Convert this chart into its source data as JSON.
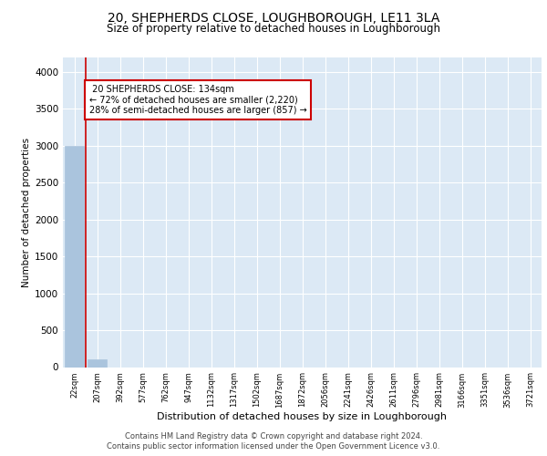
{
  "title_line1": "20, SHEPHERDS CLOSE, LOUGHBOROUGH, LE11 3LA",
  "title_line2": "Size of property relative to detached houses in Loughborough",
  "xlabel": "Distribution of detached houses by size in Loughborough",
  "ylabel": "Number of detached properties",
  "footer_line1": "Contains HM Land Registry data © Crown copyright and database right 2024.",
  "footer_line2": "Contains public sector information licensed under the Open Government Licence v3.0.",
  "bar_labels": [
    "22sqm",
    "207sqm",
    "392sqm",
    "577sqm",
    "762sqm",
    "947sqm",
    "1132sqm",
    "1317sqm",
    "1502sqm",
    "1687sqm",
    "1872sqm",
    "2056sqm",
    "2241sqm",
    "2426sqm",
    "2611sqm",
    "2796sqm",
    "2981sqm",
    "3166sqm",
    "3351sqm",
    "3536sqm",
    "3721sqm"
  ],
  "bar_values": [
    3000,
    110,
    0,
    0,
    0,
    0,
    0,
    0,
    0,
    0,
    0,
    0,
    0,
    0,
    0,
    0,
    0,
    0,
    0,
    0,
    0
  ],
  "bar_color": "#aac4dd",
  "pct_smaller": 72,
  "count_smaller": 2220,
  "pct_larger": 28,
  "count_larger": 857,
  "property_label": "20 SHEPHERDS CLOSE: 134sqm",
  "annotation_box_color": "#cc0000",
  "vline_color": "#cc0000",
  "ylim": [
    0,
    4200
  ],
  "yticks": [
    0,
    500,
    1000,
    1500,
    2000,
    2500,
    3000,
    3500,
    4000
  ],
  "bg_color": "#dce9f5",
  "grid_color": "#ffffff"
}
